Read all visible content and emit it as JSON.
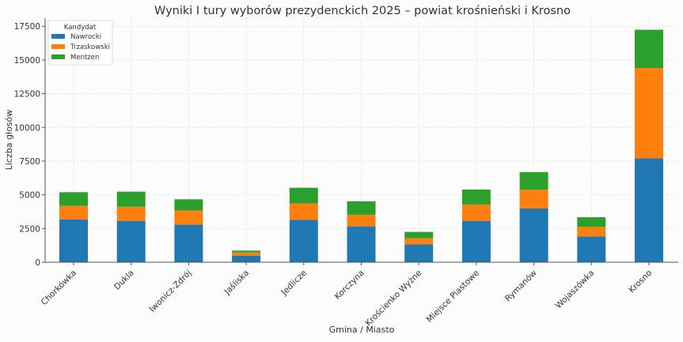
{
  "chart_data": {
    "type": "bar",
    "stacked": true,
    "title": "Wyniki I tury wyborów prezydenckich 2025 – powiat krośnieński i Krosno",
    "xlabel": "Gmina / Miasto",
    "ylabel": "Liczba głosów",
    "ylim": [
      0,
      18100
    ],
    "yticks": [
      0,
      2500,
      5000,
      7500,
      10000,
      12500,
      15000,
      17500
    ],
    "grid": true,
    "legend": {
      "title": "Kandydat",
      "placement": "top-left"
    },
    "categories": [
      "Chorkówka",
      "Dukla",
      "Iwonicz-Zdrój",
      "Jaśliska",
      "Jedlicze",
      "Korczyna",
      "Krościenko Wyżne",
      "Miejsce Piastowe",
      "Rymanów",
      "Wojaszówka",
      "Krosno"
    ],
    "series": [
      {
        "name": "Nawrocki",
        "color": "#1f77b4",
        "values": [
          3180,
          3070,
          2790,
          490,
          3145,
          2660,
          1330,
          3070,
          3985,
          1915,
          7700
        ]
      },
      {
        "name": "Trzaskowski",
        "color": "#ff7f0e",
        "values": [
          1000,
          1050,
          1040,
          230,
          1210,
          860,
          450,
          1210,
          1390,
          700,
          6710
        ]
      },
      {
        "name": "Mentzen",
        "color": "#2ca02c",
        "values": [
          1015,
          1115,
          840,
          140,
          1170,
          1000,
          470,
          1110,
          1310,
          720,
          2830
        ]
      }
    ]
  }
}
